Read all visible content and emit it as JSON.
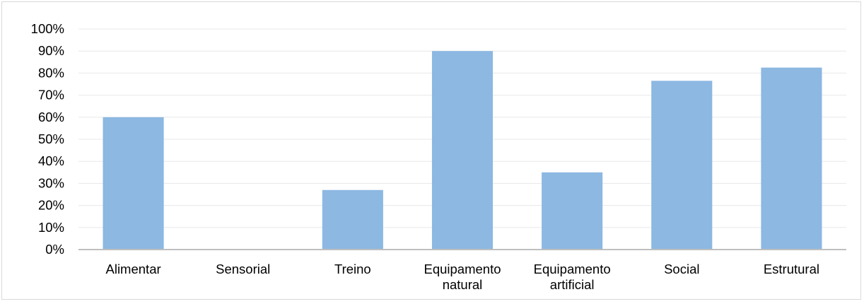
{
  "chart_data": {
    "type": "bar",
    "title": "",
    "xlabel": "",
    "ylabel": "",
    "categories": [
      [
        "Alimentar"
      ],
      [
        "Sensorial"
      ],
      [
        "Treino"
      ],
      [
        "Equipamento",
        "natural"
      ],
      [
        "Equipamento",
        "artificial"
      ],
      [
        "Social"
      ],
      [
        "Estrutural"
      ]
    ],
    "values": [
      60,
      0,
      27,
      90,
      35,
      76.5,
      82.5
    ],
    "ylim": [
      0,
      100
    ],
    "yticks": [
      0,
      10,
      20,
      30,
      40,
      50,
      60,
      70,
      80,
      90,
      100
    ],
    "ytick_labels": [
      "0%",
      "10%",
      "20%",
      "30%",
      "40%",
      "50%",
      "60%",
      "70%",
      "80%",
      "90%",
      "100%"
    ],
    "bar_color": "#8cb8e2",
    "gridline_color": "#e8e8e8",
    "axis_color": "#bfbfbf",
    "grid": true,
    "legend": "none"
  }
}
